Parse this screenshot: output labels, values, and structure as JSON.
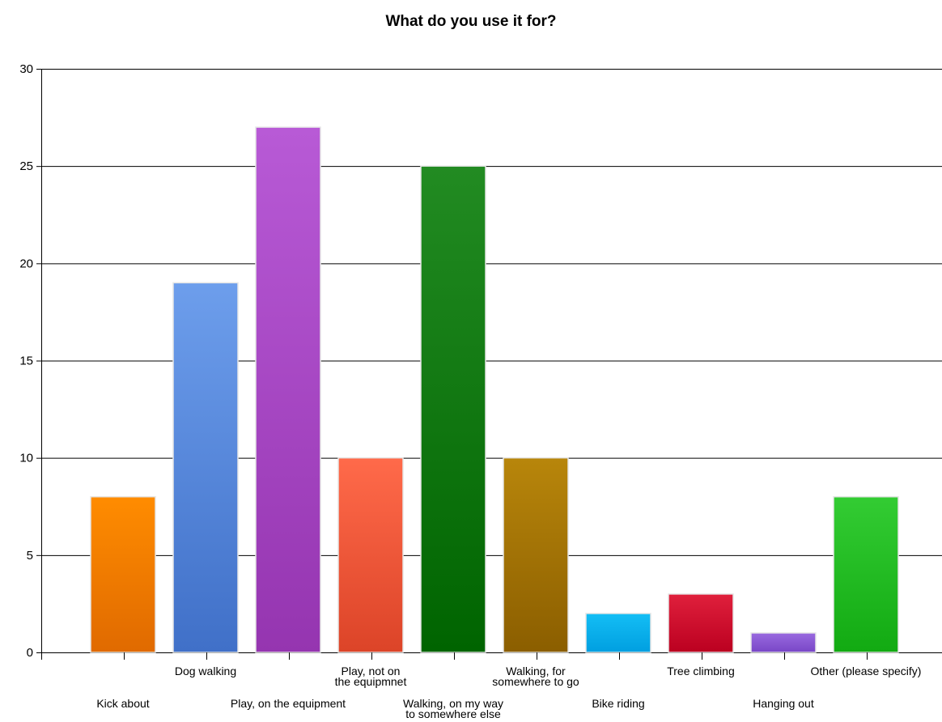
{
  "chart_data": {
    "type": "bar",
    "title": "What do you use it for?",
    "xlabel": "",
    "ylabel": "",
    "ylim": [
      0,
      30
    ],
    "yticks": [
      0,
      5,
      10,
      15,
      20,
      25,
      30
    ],
    "grid": true,
    "categories": [
      "Kick about",
      "Dog walking",
      "Play, on the equipment",
      "Play, not on the equipmnet",
      "Walking, on my way to somewhere else",
      "Walking, for somewhere to go",
      "Bike riding",
      "Tree climbing",
      "Hanging out",
      "Other (please specify)"
    ],
    "category_label_lines": [
      [
        "Kick about"
      ],
      [
        "Dog walking"
      ],
      [
        "Play, on the equipment"
      ],
      [
        "Play, not on",
        "the equipmnet"
      ],
      [
        "Walking, on my way",
        "to somewhere else"
      ],
      [
        "Walking, for",
        "somewhere to go"
      ],
      [
        "Bike riding"
      ],
      [
        "Tree climbing"
      ],
      [
        "Hanging out"
      ],
      [
        "Other (please specify)"
      ]
    ],
    "values": [
      8,
      19,
      27,
      10,
      25,
      10,
      2,
      3,
      1,
      8
    ],
    "colors": [
      [
        "#ff8c00",
        "#e06a00"
      ],
      [
        "#6d9eec",
        "#4070c8"
      ],
      [
        "#b85ad6",
        "#9535b0"
      ],
      [
        "#ff6a4a",
        "#dc4428"
      ],
      [
        "#228b22",
        "#006400"
      ],
      [
        "#b8860b",
        "#8b5e00"
      ],
      [
        "#14bef5",
        "#009fe0"
      ],
      [
        "#e0203c",
        "#bb0020"
      ],
      [
        "#9a6ae0",
        "#7846c6"
      ],
      [
        "#33cc33",
        "#12aa12"
      ]
    ]
  }
}
